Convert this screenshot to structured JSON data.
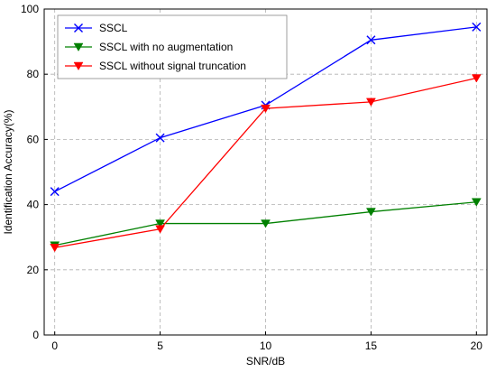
{
  "chart_data": {
    "type": "line",
    "xlabel": "SNR/dB",
    "ylabel": "Identification Accuracy(%)",
    "x": [
      0,
      5,
      10,
      15,
      20
    ],
    "xlim": [
      -0.5,
      20.5
    ],
    "ylim": [
      0,
      100
    ],
    "xticks": [
      "0",
      "5",
      "10",
      "15",
      "20"
    ],
    "yticks": [
      "0",
      "20",
      "40",
      "60",
      "80",
      "100"
    ],
    "grid": true,
    "legend_position": "top-left",
    "series": [
      {
        "name": "SSCL",
        "values": [
          44,
          60.5,
          70.5,
          90.5,
          94.5
        ],
        "color": "#0000ff",
        "marker": "x"
      },
      {
        "name": "SSCL with no augmentation",
        "values": [
          27.5,
          34.2,
          34.2,
          37.8,
          40.8
        ],
        "color": "#008000",
        "marker": "triangle-down"
      },
      {
        "name": "SSCL without signal truncation",
        "values": [
          26.8,
          32.5,
          69.5,
          71.5,
          78.8
        ],
        "color": "#ff0000",
        "marker": "triangle-down"
      }
    ]
  }
}
